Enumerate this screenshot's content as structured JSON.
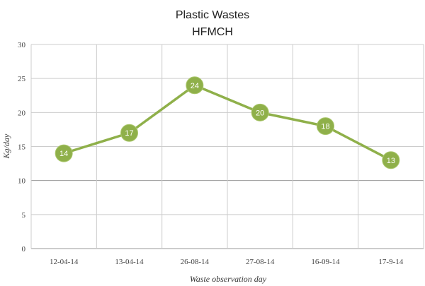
{
  "chart_data": {
    "type": "line",
    "title": "Plastic Wastes",
    "subtitle": "HFMCH",
    "xlabel": "Waste observation day",
    "ylabel": "Kg/day",
    "categories": [
      "12-04-14",
      "13-04-14",
      "26-08-14",
      "27-08-14",
      "16-09-14",
      "17-9-14"
    ],
    "series": [
      {
        "values": [
          14,
          17,
          24,
          20,
          18,
          13
        ]
      }
    ],
    "ylim": [
      0,
      30
    ],
    "yticks": [
      0,
      5,
      10,
      15,
      20,
      25,
      30
    ],
    "grid": true,
    "data_labels": true,
    "line_color": "#8fb04a",
    "marker_color": "#8fb04a",
    "grid_color": "#cccccc"
  }
}
